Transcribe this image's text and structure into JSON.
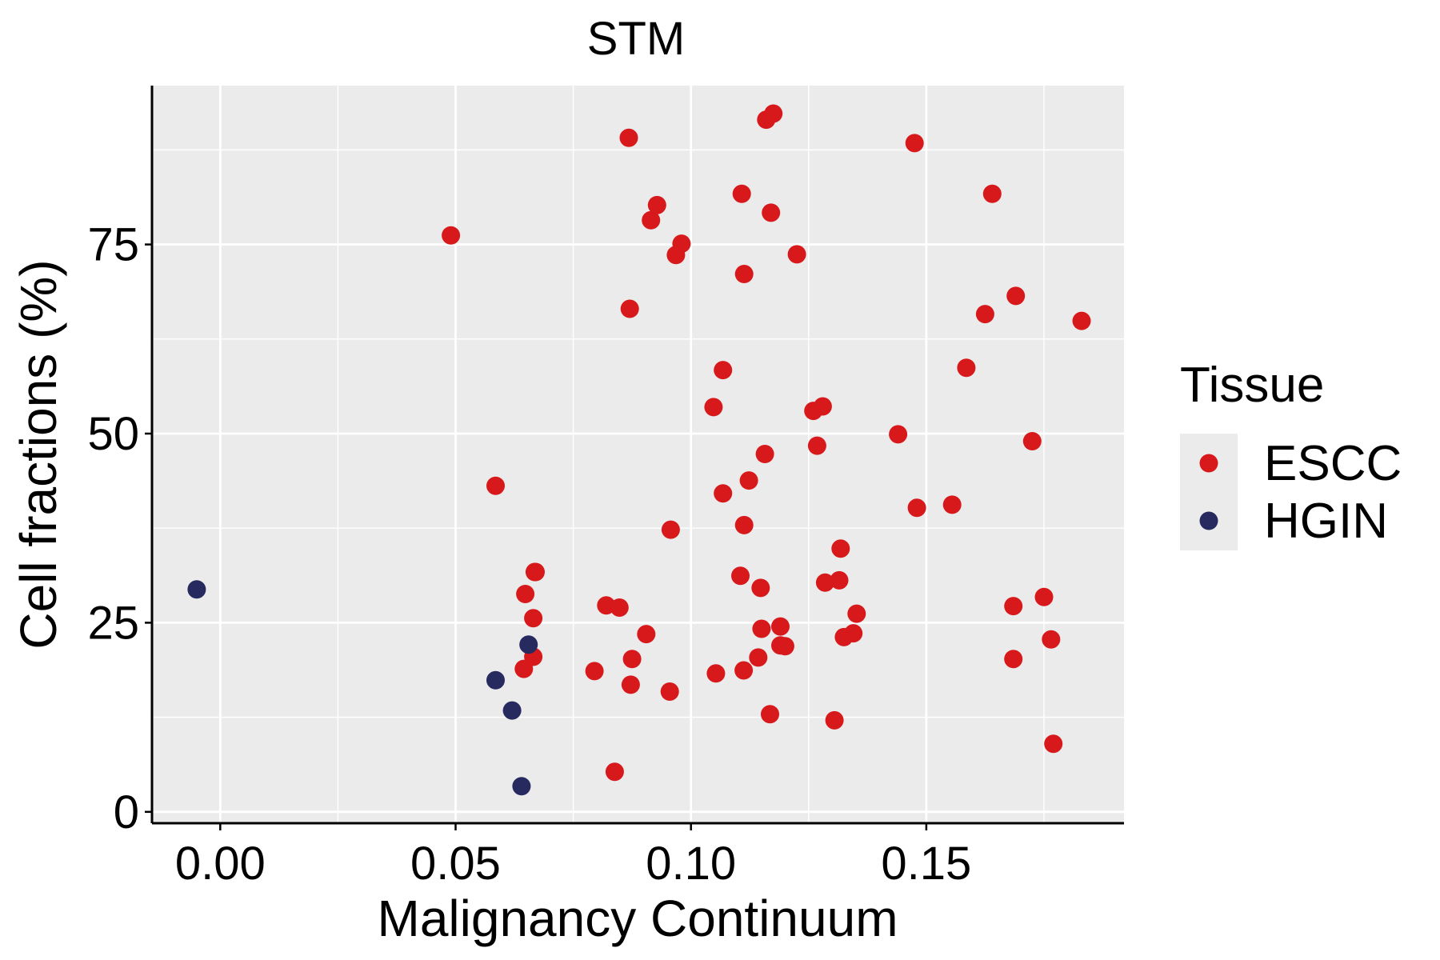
{
  "chart_data": {
    "type": "scatter",
    "title": "STM",
    "xlabel": "Malignancy Continuum",
    "ylabel": "Cell fractions (%)",
    "xlim": [
      -0.0145,
      0.192
    ],
    "ylim": [
      -1.5,
      96
    ],
    "x_ticks": [
      0.0,
      0.05,
      0.1,
      0.15
    ],
    "x_tick_labels": [
      "0.00",
      "0.05",
      "0.10",
      "0.15"
    ],
    "y_ticks": [
      0,
      25,
      50,
      75
    ],
    "y_tick_labels": [
      "0",
      "25",
      "50",
      "75"
    ],
    "grid": true,
    "legend": {
      "title": "Tissue",
      "position": "right",
      "entries": [
        "ESCC",
        "HGIN"
      ]
    },
    "colors": {
      "ESCC": "#d7191c",
      "HGIN": "#262a5e",
      "panel_background": "#ebebeb",
      "grid": "#ffffff"
    },
    "series": [
      {
        "name": "ESCC",
        "x": [
          0.049,
          0.0585,
          0.0645,
          0.0648,
          0.0665,
          0.0665,
          0.0668,
          0.067,
          0.0795,
          0.082,
          0.0838,
          0.0848,
          0.0868,
          0.087,
          0.0872,
          0.0875,
          0.0905,
          0.0915,
          0.0928,
          0.0955,
          0.0957,
          0.0968,
          0.098,
          0.1048,
          0.1053,
          0.1068,
          0.1068,
          0.1105,
          0.1108,
          0.1112,
          0.1113,
          0.1113,
          0.1123,
          0.1143,
          0.1148,
          0.115,
          0.1157,
          0.116,
          0.1168,
          0.117,
          0.1175,
          0.119,
          0.119,
          0.12,
          0.1225,
          0.126,
          0.1268,
          0.128,
          0.1285,
          0.1305,
          0.1315,
          0.1318,
          0.1325,
          0.1345,
          0.1352,
          0.144,
          0.1475,
          0.148,
          0.1555,
          0.1585,
          0.1625,
          0.164,
          0.1685,
          0.1685,
          0.169,
          0.1725,
          0.175,
          0.1765,
          0.177,
          0.183
        ],
        "y": [
          76.2,
          43.1,
          18.9,
          28.8,
          20.5,
          25.6,
          31.7,
          31.7,
          18.6,
          27.3,
          5.3,
          27.0,
          89.1,
          66.5,
          16.8,
          20.2,
          23.5,
          78.2,
          80.2,
          15.9,
          37.3,
          73.6,
          75.1,
          53.5,
          18.3,
          42.1,
          58.4,
          31.2,
          81.7,
          18.7,
          71.1,
          37.9,
          43.8,
          20.4,
          29.6,
          24.2,
          47.3,
          91.5,
          12.9,
          79.2,
          92.3,
          22.0,
          24.5,
          21.9,
          73.7,
          53.0,
          48.4,
          53.6,
          30.3,
          12.1,
          30.6,
          34.8,
          23.1,
          23.6,
          26.2,
          49.9,
          88.4,
          40.2,
          40.6,
          58.7,
          65.8,
          81.7,
          20.2,
          27.2,
          68.2,
          49.0,
          28.4,
          22.8,
          9.0,
          64.9
        ]
      },
      {
        "name": "HGIN",
        "x": [
          -0.005,
          0.0585,
          0.062,
          0.064,
          0.0655
        ],
        "y": [
          29.4,
          17.4,
          13.4,
          3.4,
          22.1
        ]
      }
    ]
  }
}
